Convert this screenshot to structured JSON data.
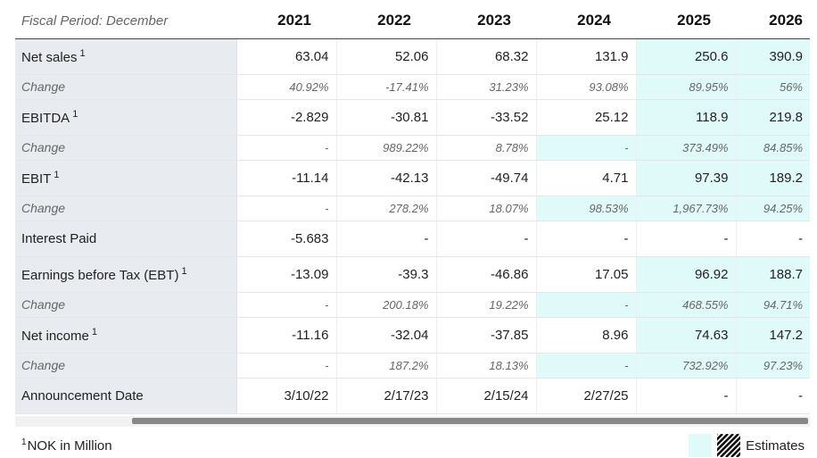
{
  "table": {
    "period_label": "Fiscal Period: December",
    "years": [
      "2021",
      "2022",
      "2023",
      "2024",
      "2025",
      "2026"
    ],
    "rows": [
      {
        "label": "Net sales",
        "sup": "1",
        "type": "main",
        "values": [
          "63.04",
          "52.06",
          "68.32",
          "131.9",
          "250.6",
          "390.9"
        ]
      },
      {
        "label": "Change",
        "sup": "",
        "type": "chg",
        "values": [
          "40.92%",
          "-17.41%",
          "31.23%",
          "93.08%",
          "89.95%",
          "56%"
        ]
      },
      {
        "label": "EBITDA",
        "sup": "1",
        "type": "main",
        "values": [
          "-2.829",
          "-30.81",
          "-33.52",
          "25.12",
          "118.9",
          "219.8"
        ]
      },
      {
        "label": "Change",
        "sup": "",
        "type": "chg",
        "values": [
          "-",
          "989.22%",
          "8.78%",
          "-",
          "373.49%",
          "84.85%"
        ]
      },
      {
        "label": "EBIT",
        "sup": "1",
        "type": "main",
        "values": [
          "-11.14",
          "-42.13",
          "-49.74",
          "4.71",
          "97.39",
          "189.2"
        ]
      },
      {
        "label": "Change",
        "sup": "",
        "type": "chg",
        "values": [
          "-",
          "278.2%",
          "18.07%",
          "98.53%",
          "1,967.73%",
          "94.25%"
        ]
      },
      {
        "label": "Interest Paid",
        "sup": "",
        "type": "main",
        "values": [
          "-5.683",
          "-",
          "-",
          "-",
          "-",
          "-"
        ]
      },
      {
        "label": "Earnings before Tax (EBT)",
        "sup": "1",
        "type": "main",
        "values": [
          "-13.09",
          "-39.3",
          "-46.86",
          "17.05",
          "96.92",
          "188.7"
        ]
      },
      {
        "label": "Change",
        "sup": "",
        "type": "chg",
        "values": [
          "-",
          "200.18%",
          "19.22%",
          "-",
          "468.55%",
          "94.71%"
        ]
      },
      {
        "label": "Net income",
        "sup": "1",
        "type": "main",
        "values": [
          "-11.16",
          "-32.04",
          "-37.85",
          "8.96",
          "74.63",
          "147.2"
        ]
      },
      {
        "label": "Change",
        "sup": "",
        "type": "chg",
        "values": [
          "-",
          "187.2%",
          "18.13%",
          "-",
          "732.92%",
          "97.23%"
        ]
      },
      {
        "label": "Announcement Date",
        "sup": "",
        "type": "main",
        "values": [
          "3/10/22",
          "2/17/23",
          "2/15/24",
          "2/27/25",
          "-",
          "-"
        ]
      }
    ]
  },
  "footnote": {
    "sup": "1",
    "text": "NOK in Million"
  },
  "legend": {
    "label": "Estimates"
  },
  "colors": {
    "estimate_bg": "#e0fafa",
    "label_bg": "#e8ebef"
  }
}
